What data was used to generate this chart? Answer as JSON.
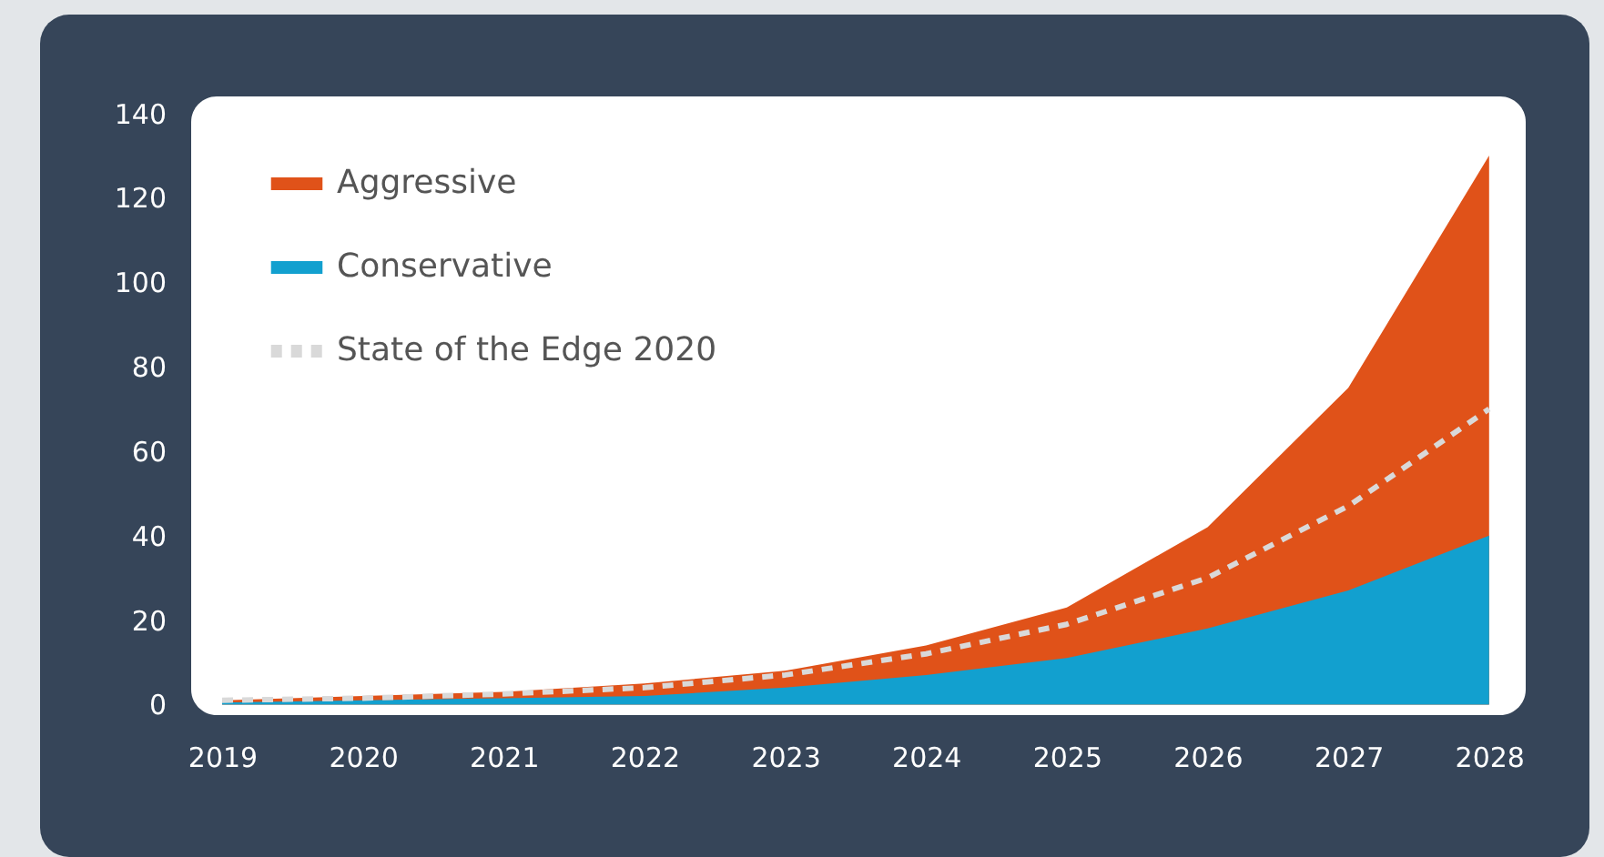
{
  "chart_data": {
    "type": "area",
    "x": [
      2019,
      2020,
      2021,
      2022,
      2023,
      2024,
      2025,
      2026,
      2027,
      2028
    ],
    "xlim": [
      2018.78,
      2028.26
    ],
    "xticks": [
      2019,
      2020,
      2021,
      2022,
      2023,
      2024,
      2025,
      2026,
      2027,
      2028
    ],
    "ylim": [
      -2.5,
      144
    ],
    "yticks": [
      0,
      20,
      40,
      60,
      80,
      100,
      120,
      140
    ],
    "legend": "top left",
    "series": [
      {
        "name": "Aggressive",
        "color": "#e05219",
        "values": [
          1,
          2,
          3,
          5,
          8,
          14,
          23,
          42,
          75,
          130
        ]
      },
      {
        "name": "Conservative",
        "color": "#12a0cf",
        "values": [
          0.5,
          1,
          1.5,
          2,
          4,
          7,
          11,
          18,
          27,
          40
        ]
      },
      {
        "name": "State of the Edge 2020",
        "type": "line",
        "line_style": "dashed",
        "color": "#d9d9d9",
        "values": [
          1,
          1.5,
          2.5,
          4,
          7,
          12,
          19,
          30,
          47,
          70
        ]
      }
    ]
  }
}
